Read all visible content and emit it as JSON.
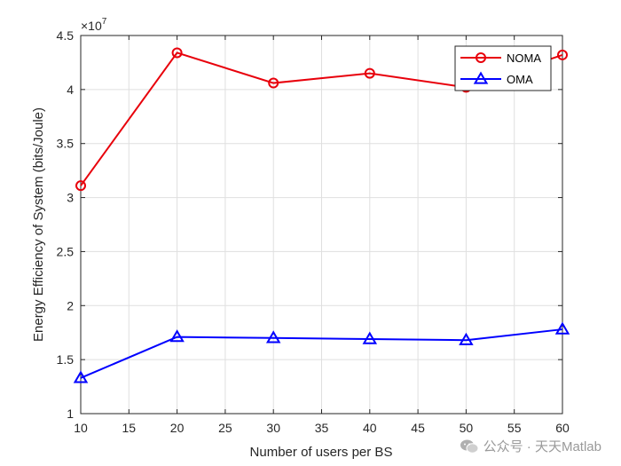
{
  "chart_data": {
    "type": "line",
    "xlabel": "Number of users per BS",
    "ylabel": "Energy Efficiency of System (bits/Joule)",
    "exponent_label": "×10",
    "exponent_power": "7",
    "xlim": [
      10,
      60
    ],
    "ylim": [
      1,
      4.5
    ],
    "xticks": [
      "10",
      "15",
      "20",
      "25",
      "30",
      "35",
      "40",
      "45",
      "50",
      "55",
      "60"
    ],
    "yticks": [
      "1",
      "1.5",
      "2",
      "2.5",
      "3",
      "3.5",
      "4",
      "4.5"
    ],
    "grid": true,
    "legend_position": "top-right",
    "x": [
      10,
      20,
      30,
      40,
      50,
      60
    ],
    "series": [
      {
        "name": "NOMA",
        "marker": "circle",
        "color": "#e8000b",
        "values": [
          3.11,
          4.34,
          4.06,
          4.15,
          4.02,
          4.32
        ]
      },
      {
        "name": "OMA",
        "marker": "triangle",
        "color": "#0000ff",
        "values": [
          1.33,
          1.71,
          1.7,
          1.69,
          1.68,
          1.78
        ]
      }
    ]
  },
  "watermark": {
    "text": "公众号 · 天天Matlab",
    "icon": "wechat-icon"
  }
}
